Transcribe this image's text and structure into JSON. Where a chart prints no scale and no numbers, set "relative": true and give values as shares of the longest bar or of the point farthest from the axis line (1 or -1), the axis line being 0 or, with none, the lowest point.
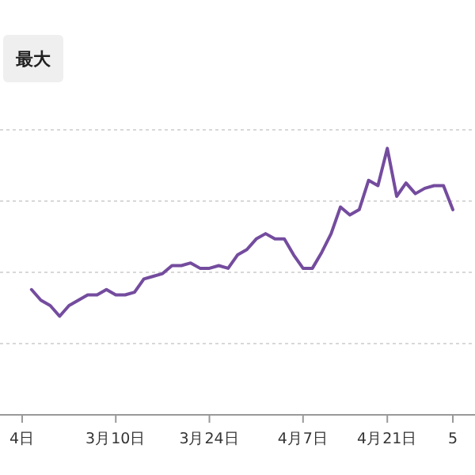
{
  "chart_data": {
    "type": "line",
    "relative": true,
    "grid": "y",
    "color": "#744c9e",
    "annotations": [
      "最大"
    ],
    "categories": [
      "4日",
      null,
      null,
      null,
      null,
      null,
      null,
      null,
      null,
      null,
      "3月10日",
      null,
      null,
      null,
      null,
      null,
      null,
      null,
      null,
      null,
      "3月24日",
      null,
      null,
      null,
      null,
      null,
      null,
      null,
      null,
      null,
      "4月7日",
      null,
      null,
      null,
      null,
      null,
      null,
      null,
      null,
      "4月21日",
      null,
      null,
      null,
      null,
      null,
      null,
      "5"
    ],
    "values": [
      null,
      0.47,
      0.43,
      0.41,
      0.37,
      0.41,
      0.43,
      0.45,
      0.45,
      0.47,
      0.45,
      0.45,
      0.46,
      0.51,
      0.52,
      0.53,
      0.56,
      0.56,
      0.57,
      0.55,
      0.55,
      0.56,
      0.55,
      0.6,
      0.62,
      0.66,
      0.68,
      0.66,
      0.66,
      0.6,
      0.55,
      0.55,
      0.61,
      0.68,
      0.78,
      0.75,
      0.77,
      0.88,
      0.86,
      1,
      0.82,
      0.87,
      0.83,
      0.85,
      0.86,
      0.86,
      0.77
    ]
  }
}
